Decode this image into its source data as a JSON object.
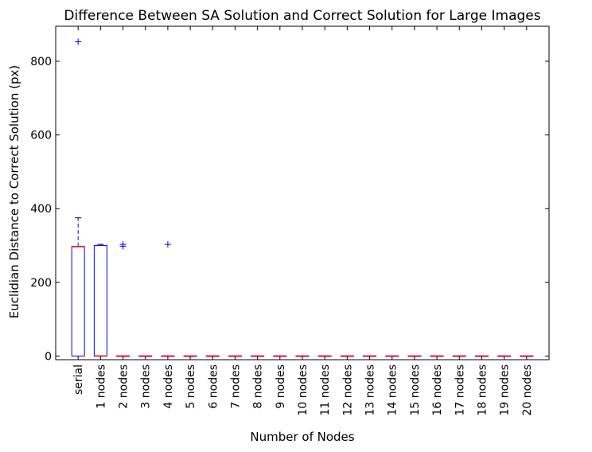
{
  "chart_data": {
    "type": "box",
    "title": "Difference Between SA Solution and Correct Solution for Large Images",
    "xlabel": "Number of Nodes",
    "ylabel": "Euclidian Distance to Correct Solution (px)",
    "ylim": [
      -10,
      895
    ],
    "yticks": [
      0,
      200,
      400,
      600,
      800
    ],
    "grid": false,
    "categories": [
      "serial",
      "1 nodes",
      "2 nodes",
      "3 nodes",
      "4 nodes",
      "5 nodes",
      "6 nodes",
      "7 nodes",
      "8 nodes",
      "9 nodes",
      "10 nodes",
      "11 nodes",
      "12 nodes",
      "13 nodes",
      "14 nodes",
      "15 nodes",
      "16 nodes",
      "17 nodes",
      "18 nodes",
      "19 nodes",
      "20 nodes"
    ],
    "boxes": [
      {
        "q1": 0,
        "median": 297,
        "q3": 297,
        "whisker_low": 0,
        "whisker_high": 375,
        "outliers": [
          853
        ]
      },
      {
        "q1": 0,
        "median": 0,
        "q3": 300,
        "whisker_low": 0,
        "whisker_high": 303,
        "outliers": []
      },
      {
        "q1": 0,
        "median": 0,
        "q3": 0,
        "whisker_low": 0,
        "whisker_high": 0,
        "outliers": [
          298,
          303
        ]
      },
      {
        "q1": 0,
        "median": 0,
        "q3": 0,
        "whisker_low": 0,
        "whisker_high": 0,
        "outliers": []
      },
      {
        "q1": 0,
        "median": 0,
        "q3": 0,
        "whisker_low": 0,
        "whisker_high": 0,
        "outliers": [
          303
        ]
      },
      {
        "q1": 0,
        "median": 0,
        "q3": 0,
        "whisker_low": 0,
        "whisker_high": 0,
        "outliers": []
      },
      {
        "q1": 0,
        "median": 0,
        "q3": 0,
        "whisker_low": 0,
        "whisker_high": 0,
        "outliers": []
      },
      {
        "q1": 0,
        "median": 0,
        "q3": 0,
        "whisker_low": 0,
        "whisker_high": 0,
        "outliers": []
      },
      {
        "q1": 0,
        "median": 0,
        "q3": 0,
        "whisker_low": 0,
        "whisker_high": 0,
        "outliers": []
      },
      {
        "q1": 0,
        "median": 0,
        "q3": 0,
        "whisker_low": 0,
        "whisker_high": 0,
        "outliers": []
      },
      {
        "q1": 0,
        "median": 0,
        "q3": 0,
        "whisker_low": 0,
        "whisker_high": 0,
        "outliers": []
      },
      {
        "q1": 0,
        "median": 0,
        "q3": 0,
        "whisker_low": 0,
        "whisker_high": 0,
        "outliers": []
      },
      {
        "q1": 0,
        "median": 0,
        "q3": 0,
        "whisker_low": 0,
        "whisker_high": 0,
        "outliers": []
      },
      {
        "q1": 0,
        "median": 0,
        "q3": 0,
        "whisker_low": 0,
        "whisker_high": 0,
        "outliers": []
      },
      {
        "q1": 0,
        "median": 0,
        "q3": 0,
        "whisker_low": 0,
        "whisker_high": 0,
        "outliers": []
      },
      {
        "q1": 0,
        "median": 0,
        "q3": 0,
        "whisker_low": 0,
        "whisker_high": 0,
        "outliers": []
      },
      {
        "q1": 0,
        "median": 0,
        "q3": 0,
        "whisker_low": 0,
        "whisker_high": 0,
        "outliers": []
      },
      {
        "q1": 0,
        "median": 0,
        "q3": 0,
        "whisker_low": 0,
        "whisker_high": 0,
        "outliers": []
      },
      {
        "q1": 0,
        "median": 0,
        "q3": 0,
        "whisker_low": 0,
        "whisker_high": 0,
        "outliers": []
      },
      {
        "q1": 0,
        "median": 0,
        "q3": 0,
        "whisker_low": 0,
        "whisker_high": 0,
        "outliers": []
      },
      {
        "q1": 0,
        "median": 0,
        "q3": 0,
        "whisker_low": 0,
        "whisker_high": 0,
        "outliers": []
      }
    ],
    "colors": {
      "box": "#0000ff",
      "median": "#ff0000",
      "outlier": "#0000ff",
      "axis": "#000000"
    }
  }
}
